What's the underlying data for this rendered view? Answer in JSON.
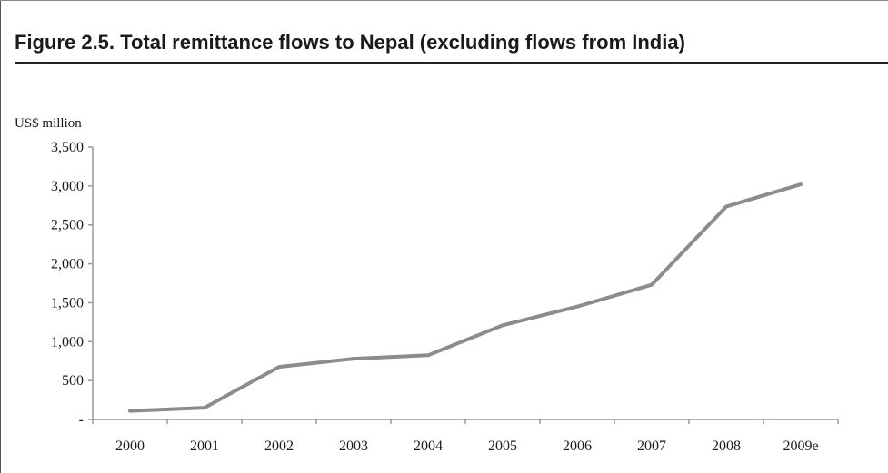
{
  "figure": {
    "title": "Figure 2.5. Total remittance flows to Nepal (excluding flows from India)"
  },
  "chart_data": {
    "type": "line",
    "title": "Figure 2.5. Total remittance flows to Nepal (excluding flows from India)",
    "xlabel": "",
    "ylabel": "US$ million",
    "categories": [
      "2000",
      "2001",
      "2002",
      "2003",
      "2004",
      "2005",
      "2006",
      "2007",
      "2008",
      "2009e"
    ],
    "series": [
      {
        "values": [
          110,
          150,
          675,
          780,
          825,
          1210,
          1450,
          1730,
          2735,
          3020
        ],
        "color": "#8c8c8c"
      }
    ],
    "ylim": [
      0,
      3500
    ],
    "yticks": [
      0,
      500,
      1000,
      1500,
      2000,
      2500,
      3000,
      3500
    ],
    "ytick_labels": [
      "-",
      "500",
      "1,000",
      "1,500",
      "2,000",
      "2,500",
      "3,000",
      "3,500"
    ],
    "grid": false,
    "legend": "none"
  }
}
